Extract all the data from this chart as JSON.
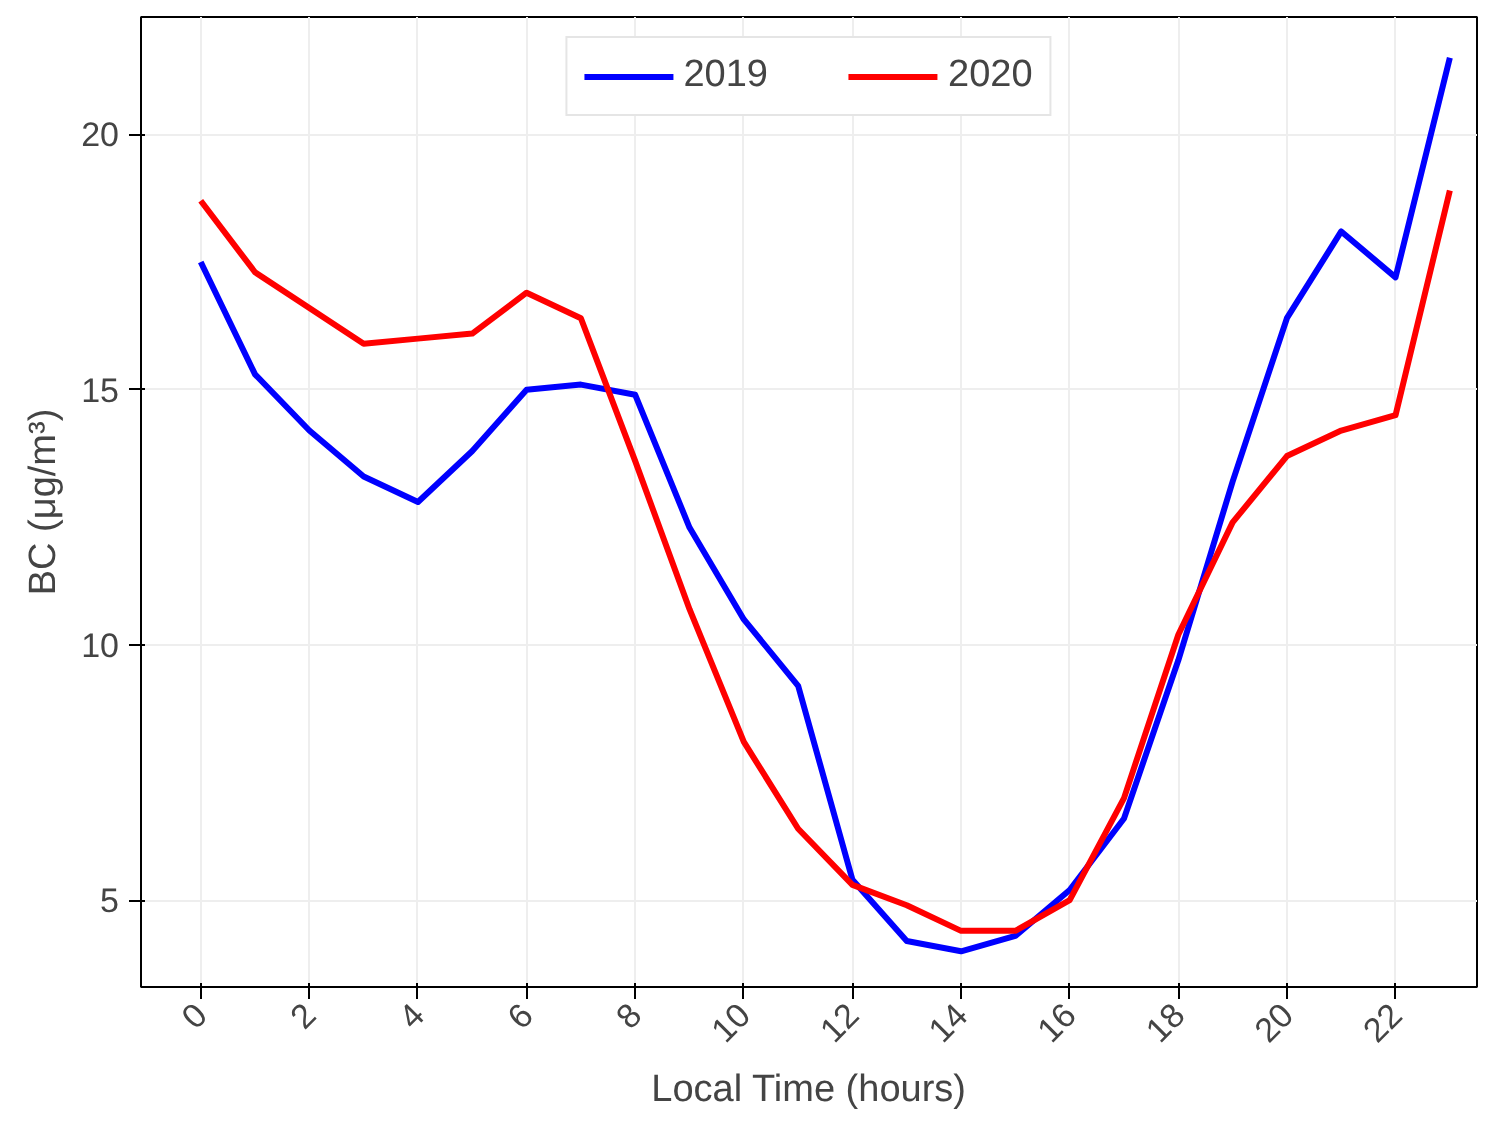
{
  "chart_data": {
    "type": "line",
    "xlabel": "Local Time (hours)",
    "ylabel": "BC (μg/m³)",
    "x": [
      0,
      1,
      2,
      3,
      4,
      5,
      6,
      7,
      8,
      9,
      10,
      11,
      12,
      13,
      14,
      15,
      16,
      17,
      18,
      19,
      20,
      21,
      22,
      23
    ],
    "series": [
      {
        "name": "2019",
        "color": "#0000ff",
        "values": [
          17.5,
          15.3,
          14.2,
          13.3,
          12.8,
          13.8,
          15.0,
          15.1,
          14.9,
          12.3,
          10.5,
          9.2,
          5.4,
          4.2,
          4.0,
          4.3,
          5.2,
          6.6,
          9.7,
          13.2,
          16.4,
          18.1,
          17.2,
          21.5
        ]
      },
      {
        "name": "2020",
        "color": "#ff0000",
        "values": [
          18.7,
          17.3,
          16.6,
          15.9,
          16.0,
          16.1,
          16.9,
          16.4,
          13.6,
          10.7,
          8.1,
          6.4,
          5.3,
          4.9,
          4.4,
          4.4,
          5.0,
          7.0,
          10.2,
          12.4,
          13.7,
          14.2,
          14.5,
          18.9
        ]
      }
    ],
    "xlim": [
      -1.1,
      23.5
    ],
    "xticks": [
      0,
      2,
      4,
      6,
      8,
      10,
      12,
      14,
      16,
      18,
      20,
      22
    ],
    "ylim": [
      3.3,
      22.3
    ],
    "yticks": [
      5,
      10,
      15,
      20
    ],
    "grid": true,
    "legend": "top",
    "marker": "none",
    "line_style": "solid"
  }
}
